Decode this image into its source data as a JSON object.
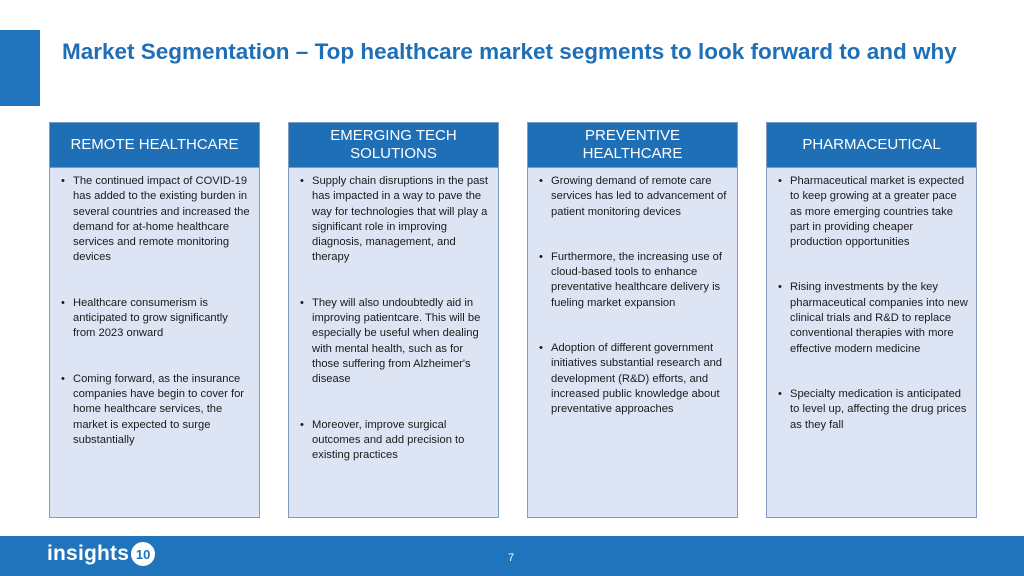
{
  "slide": {
    "title": "Market Segmentation – Top healthcare market segments to look forward to and why",
    "page_number": "7",
    "colors": {
      "accent": "#1f6fb6",
      "column_fill": "#dde4f3",
      "footer": "#1f74bb"
    }
  },
  "footer": {
    "logo_text": "insights",
    "logo_badge": "10"
  },
  "columns": [
    {
      "header": "REMOTE HEALTHCARE",
      "bullets": [
        "The continued impact of COVID-19 has added to the existing burden in several countries and increased the demand for at-home healthcare services and remote monitoring devices",
        "Healthcare consumerism is anticipated to grow significantly from 2023 onward",
        "Coming forward,  as the insurance companies have begin to cover for home healthcare services, the market is expected to surge substantially"
      ]
    },
    {
      "header": "EMERGING TECH SOLUTIONS",
      "bullets": [
        "Supply chain disruptions in the past has impacted in a way to pave the way for technologies that will play a significant role in improving diagnosis, management, and therapy",
        "They will also undoubtedly aid in improving patientcare.  This will be especially be useful when dealing with mental health, such as for those suffering from Alzheimer's disease",
        "Moreover, improve surgical outcomes and add precision to existing practices"
      ]
    },
    {
      "header": "PREVENTIVE HEALTHCARE",
      "bullets": [
        "Growing demand of remote care services has led to advancement of patient monitoring devices",
        "Furthermore, the increasing use of cloud-based tools to enhance preventative healthcare delivery is fueling market expansion",
        "Adoption of different government initiatives substantial research and development (R&D) efforts, and increased public knowledge about preventative approaches"
      ]
    },
    {
      "header": "PHARMACEUTICAL",
      "bullets": [
        "Pharmaceutical market is expected to keep growing at a greater pace as more emerging countries take part in providing cheaper production opportunities",
        "Rising investments by the key pharmaceutical companies into new clinical trials and R&D to replace conventional therapies with more effective modern medicine",
        "Specialty medication is anticipated to level up, affecting the drug prices as they fall"
      ]
    }
  ]
}
